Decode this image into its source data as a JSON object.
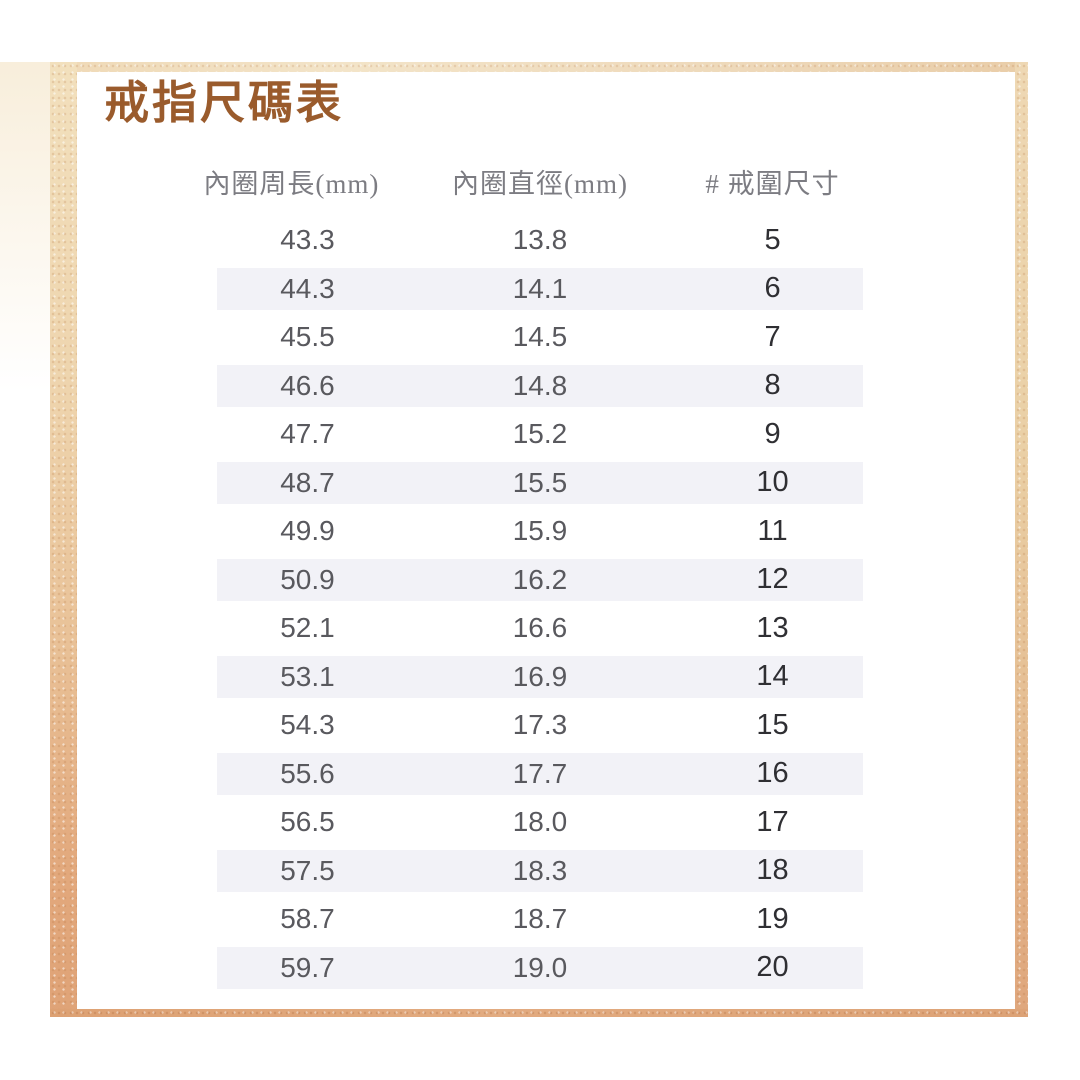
{
  "page": {
    "title": "戒指尺碼表"
  },
  "colors": {
    "title_brown": "#9a5b2c",
    "header_gray": "#7c7c82",
    "value_gray": "#59595e",
    "size_dark": "#2f2f33",
    "row_stripe": "#f2f2f7",
    "foil_light": "#f3e4c8",
    "foil_mid": "#e9c298",
    "foil_deep": "#dda173"
  },
  "table": {
    "headers": [
      "內圈周長(mm)",
      "內圈直徑(mm)",
      "# 戒圍尺寸"
    ],
    "rows": [
      [
        "43.3",
        "13.8",
        "5"
      ],
      [
        "44.3",
        "14.1",
        "6"
      ],
      [
        "45.5",
        "14.5",
        "7"
      ],
      [
        "46.6",
        "14.8",
        "8"
      ],
      [
        "47.7",
        "15.2",
        "9"
      ],
      [
        "48.7",
        "15.5",
        "10"
      ],
      [
        "49.9",
        "15.9",
        "11"
      ],
      [
        "50.9",
        "16.2",
        "12"
      ],
      [
        "52.1",
        "16.6",
        "13"
      ],
      [
        "53.1",
        "16.9",
        "14"
      ],
      [
        "54.3",
        "17.3",
        "15"
      ],
      [
        "55.6",
        "17.7",
        "16"
      ],
      [
        "56.5",
        "18.0",
        "17"
      ],
      [
        "57.5",
        "18.3",
        "18"
      ],
      [
        "58.7",
        "18.7",
        "19"
      ],
      [
        "59.7",
        "19.0",
        "20"
      ]
    ]
  },
  "chart_data": {
    "type": "table",
    "title": "戒指尺碼表",
    "columns": [
      "內圈周長(mm)",
      "內圈直徑(mm)",
      "# 戒圍尺寸"
    ],
    "rows": [
      [
        43.3,
        13.8,
        5
      ],
      [
        44.3,
        14.1,
        6
      ],
      [
        45.5,
        14.5,
        7
      ],
      [
        46.6,
        14.8,
        8
      ],
      [
        47.7,
        15.2,
        9
      ],
      [
        48.7,
        15.5,
        10
      ],
      [
        49.9,
        15.9,
        11
      ],
      [
        50.9,
        16.2,
        12
      ],
      [
        52.1,
        16.6,
        13
      ],
      [
        53.1,
        16.9,
        14
      ],
      [
        54.3,
        17.3,
        15
      ],
      [
        55.6,
        17.7,
        16
      ],
      [
        56.5,
        18.0,
        17
      ],
      [
        57.5,
        18.3,
        18
      ],
      [
        58.7,
        18.7,
        19
      ],
      [
        59.7,
        19.0,
        20
      ]
    ],
    "layout": {
      "row_striping": "alternate rows shaded, starting with second row",
      "column_alignment": "center"
    }
  }
}
